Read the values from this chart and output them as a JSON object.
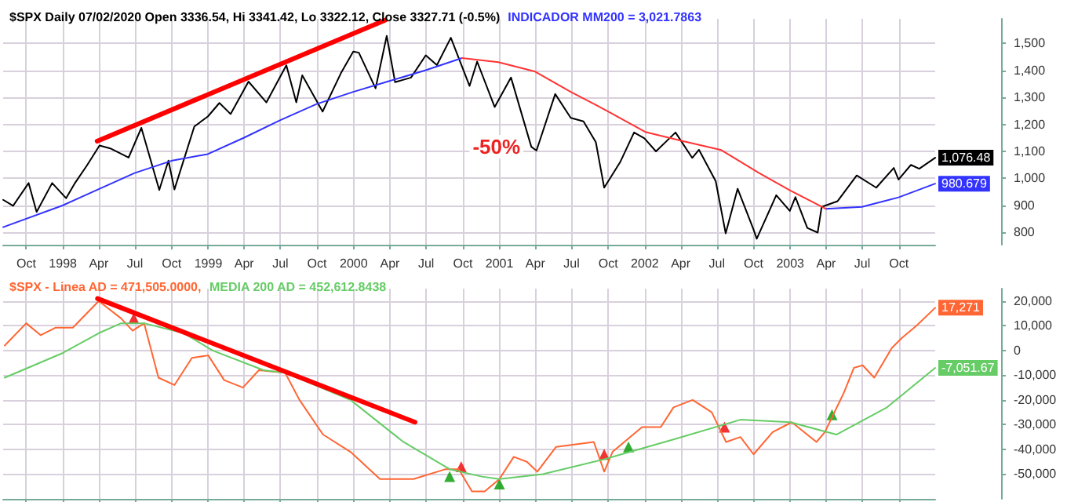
{
  "chart_data": [
    {
      "type": "line",
      "title": "$SPX Daily 07/02/2020 Open 3336.54, Hi 3341.42, Lo 3322.12, Close 3327.71 (-0.5%)",
      "subtitle": "INDICADOR MM200 = 3,021.7863",
      "annotations": [
        "-50%"
      ],
      "xlim": [
        "1997-08-04",
        "2003-12-31"
      ],
      "xticks": [
        {
          "value": "1997-10-01",
          "label": "Oct"
        },
        {
          "value": "1998-01-01",
          "label": "1998"
        },
        {
          "value": "1998-04-01",
          "label": "Apr"
        },
        {
          "value": "1998-07-01",
          "label": "Jul"
        },
        {
          "value": "1998-10-01",
          "label": "Oct"
        },
        {
          "value": "1999-01-01",
          "label": "1999"
        },
        {
          "value": "1999-04-01",
          "label": "Apr"
        },
        {
          "value": "1999-07-01",
          "label": "Jul"
        },
        {
          "value": "1999-10-01",
          "label": "Oct"
        },
        {
          "value": "2000-01-01",
          "label": "2000"
        },
        {
          "value": "2000-04-01",
          "label": "Apr"
        },
        {
          "value": "2000-07-01",
          "label": "Jul"
        },
        {
          "value": "2000-10-01",
          "label": "Oct"
        },
        {
          "value": "2001-01-01",
          "label": "2001"
        },
        {
          "value": "2001-04-01",
          "label": "Apr"
        },
        {
          "value": "2001-07-01",
          "label": "Jul"
        },
        {
          "value": "2001-10-01",
          "label": "Oct"
        },
        {
          "value": "2002-01-01",
          "label": "2002"
        },
        {
          "value": "2002-04-01",
          "label": "Apr"
        },
        {
          "value": "2002-07-01",
          "label": "Jul"
        },
        {
          "value": "2002-10-01",
          "label": "Oct"
        },
        {
          "value": "2003-01-01",
          "label": "2003"
        },
        {
          "value": "2003-04-01",
          "label": "Apr"
        },
        {
          "value": "2003-07-01",
          "label": "Jul"
        },
        {
          "value": "2003-10-01",
          "label": "Oct"
        }
      ],
      "ylim": [
        755,
        1590
      ],
      "yticks": [
        {
          "value": 800,
          "label": "800"
        },
        {
          "value": 900,
          "label": "900"
        },
        {
          "value": 1000,
          "label": "1,000"
        },
        {
          "value": 1100,
          "label": "1,100"
        },
        {
          "value": 1200,
          "label": "1,200"
        },
        {
          "value": 1300,
          "label": "1,300"
        },
        {
          "value": 1400,
          "label": "1,400"
        },
        {
          "value": 1500,
          "label": "1,500"
        }
      ],
      "grid": true,
      "series": [
        {
          "color": "#000000",
          "x": [
            "1997-08-04",
            "1997-08-29",
            "1997-10-07",
            "1997-10-27",
            "1997-12-05",
            "1998-01-09",
            "1998-01-30",
            "1998-03-02",
            "1998-04-03",
            "1998-04-30",
            "1998-06-15",
            "1998-07-17",
            "1998-08-31",
            "1998-09-23",
            "1998-10-08",
            "1998-11-27",
            "1998-12-31",
            "1999-01-29",
            "1999-02-26",
            "1999-04-12",
            "1999-05-27",
            "1999-07-16",
            "1999-08-10",
            "1999-08-25",
            "1999-10-15",
            "1999-11-30",
            "1999-12-31",
            "2000-01-14",
            "2000-02-25",
            "2000-03-24",
            "2000-04-14",
            "2000-05-24",
            "2000-06-30",
            "2000-07-28",
            "2000-09-01",
            "2000-10-18",
            "2000-11-06",
            "2000-12-20",
            "2001-01-30",
            "2001-03-22",
            "2001-04-04",
            "2001-05-21",
            "2001-06-29",
            "2001-07-31",
            "2001-08-31",
            "2001-09-21",
            "2001-10-31",
            "2001-12-05",
            "2001-12-31",
            "2002-01-29",
            "2002-03-19",
            "2002-04-30",
            "2002-05-17",
            "2002-06-28",
            "2002-07-23",
            "2002-08-22",
            "2002-09-30",
            "2002-10-09",
            "2002-11-27",
            "2002-12-31",
            "2003-01-14",
            "2003-02-13",
            "2003-03-11",
            "2003-03-21",
            "2003-04-30",
            "2003-06-17",
            "2003-08-05",
            "2003-09-18",
            "2003-09-30",
            "2003-10-31",
            "2003-11-21",
            "2003-12-31"
          ],
          "values": [
            921,
            899,
            983,
            876,
            983,
            927,
            980,
            1047,
            1122,
            1111,
            1077,
            1187,
            957,
            1066,
            959,
            1192,
            1229,
            1279,
            1238,
            1358,
            1281,
            1418,
            1281,
            1381,
            1247,
            1389,
            1469,
            1465,
            1333,
            1527,
            1356,
            1373,
            1455,
            1419,
            1520,
            1342,
            1432,
            1264,
            1373,
            1117,
            1103,
            1312,
            1224,
            1211,
            1134,
            966,
            1060,
            1170,
            1148,
            1100,
            1170,
            1076,
            1106,
            990,
            797,
            962,
            815,
            777,
            938,
            880,
            931,
            817,
            800,
            895,
            916,
            1011,
            966,
            1039,
            996,
            1050,
            1036,
            1076.48
          ],
          "value_labels": [
            null,
            null,
            null,
            null,
            null,
            null,
            null,
            null,
            null,
            null,
            null,
            null,
            null,
            null,
            null,
            null,
            null,
            null,
            null,
            null,
            null,
            null,
            null,
            null,
            null,
            null,
            null,
            null,
            null,
            null,
            null,
            null,
            null,
            null,
            null,
            null,
            null,
            null,
            null,
            null,
            null,
            null,
            null,
            null,
            null,
            null,
            null,
            null,
            null,
            null,
            null,
            null,
            null,
            null,
            null,
            null,
            null,
            null,
            null,
            null,
            null,
            null,
            null,
            null,
            null,
            null,
            null,
            null,
            null,
            null,
            null,
            "1,076.48"
          ]
        },
        {
          "color": "#3333ff",
          "x": [
            "1997-08-04",
            "1997-12-31",
            "1998-03-31",
            "1998-06-30",
            "1998-09-30",
            "1998-12-31",
            "1999-03-31",
            "1999-06-30",
            "1999-09-30",
            "1999-12-31",
            "2000-03-31",
            "2000-06-30",
            "2000-09-29",
            "2000-10-15",
            "2003-03-31",
            "2003-06-30",
            "2003-09-30",
            "2003-12-31"
          ],
          "values": [
            820,
            900,
            960,
            1020,
            1065,
            1090,
            1150,
            1215,
            1275,
            1320,
            1360,
            1400,
            1445,
            null,
            888,
            895,
            930,
            980.679
          ],
          "value_labels": [
            null,
            null,
            null,
            null,
            null,
            null,
            null,
            null,
            null,
            null,
            null,
            null,
            null,
            null,
            null,
            null,
            null,
            "980.679"
          ]
        },
        {
          "color": "#ff3333",
          "x": [
            "2000-09-29",
            "2000-12-29",
            "2001-03-30",
            "2001-06-29",
            "2001-09-28",
            "2002-01-02",
            "2002-04-01",
            "2002-07-12",
            "2002-10-15",
            "2003-01-02",
            "2003-03-31"
          ],
          "values": [
            1445,
            1430,
            1396,
            1320,
            1250,
            1172,
            1140,
            1105,
            1020,
            955,
            888
          ]
        },
        {
          "color": "#ff0000",
          "x": [
            "1998-03-28",
            "2000-03-20"
          ],
          "values": [
            1138,
            1585
          ]
        }
      ]
    },
    {
      "type": "line",
      "title": "$SPX - Linea AD = 471,505.0000,",
      "subtitle": "MEDIA 200 AD = 452,612.8438",
      "tick_labels": "y",
      "xlim": [
        "1997-08-04",
        "2003-12-31"
      ],
      "xticks": [
        {
          "value": "1997-10-01",
          "label": null
        },
        {
          "value": "1998-01-01",
          "label": null
        },
        {
          "value": "1998-04-01",
          "label": null
        },
        {
          "value": "1998-07-01",
          "label": null
        },
        {
          "value": "1998-10-01",
          "label": null
        },
        {
          "value": "1999-01-01",
          "label": null
        },
        {
          "value": "1999-04-01",
          "label": null
        },
        {
          "value": "1999-07-01",
          "label": null
        },
        {
          "value": "1999-10-01",
          "label": null
        },
        {
          "value": "2000-01-01",
          "label": null
        },
        {
          "value": "2000-04-01",
          "label": null
        },
        {
          "value": "2000-07-01",
          "label": null
        },
        {
          "value": "2000-10-01",
          "label": null
        },
        {
          "value": "2001-01-01",
          "label": null
        },
        {
          "value": "2001-04-01",
          "label": null
        },
        {
          "value": "2001-07-01",
          "label": null
        },
        {
          "value": "2001-10-01",
          "label": null
        },
        {
          "value": "2002-01-01",
          "label": null
        },
        {
          "value": "2002-04-01",
          "label": null
        },
        {
          "value": "2002-07-01",
          "label": null
        },
        {
          "value": "2002-10-01",
          "label": null
        },
        {
          "value": "2003-01-01",
          "label": null
        },
        {
          "value": "2003-04-01",
          "label": null
        },
        {
          "value": "2003-07-01",
          "label": null
        },
        {
          "value": "2003-10-01",
          "label": null
        }
      ],
      "ylim": [
        -60000,
        25000
      ],
      "yticks": [
        {
          "value": -50000,
          "label": "-50,000"
        },
        {
          "value": -40000,
          "label": "-40,000"
        },
        {
          "value": -30000,
          "label": "-30,000"
        },
        {
          "value": -20000,
          "label": "-20,000"
        },
        {
          "value": -10000,
          "label": "-10,000"
        },
        0,
        {
          "value": 10000,
          "label": "10,000"
        },
        {
          "value": 20000,
          "label": "20,000"
        }
      ],
      "grid": true,
      "series": [
        {
          "color": "#ff6633",
          "x": [
            "1997-08-08",
            "1997-10-01",
            "1997-11-06",
            "1997-12-13",
            "1998-01-26",
            "1998-04-01",
            "1998-05-27",
            "1998-06-25",
            "1998-07-24",
            "1998-08-29",
            "1998-10-08",
            "1998-11-21",
            "1999-01-01",
            "1999-02-10",
            "1999-03-29",
            "1999-05-08",
            "1999-07-13",
            "1999-08-18",
            "1999-10-16",
            "1999-12-24",
            "2000-03-07",
            "2000-05-30",
            "2000-08-19",
            "2000-09-21",
            "2000-10-24",
            "2000-11-25",
            "2001-01-01",
            "2001-02-06",
            "2001-03-11",
            "2001-04-06",
            "2001-05-23",
            "2001-08-26",
            "2001-09-21",
            "2001-10-12",
            "2001-12-25",
            "2002-02-10",
            "2002-03-14",
            "2002-05-01",
            "2002-06-18",
            "2002-07-24",
            "2002-08-29",
            "2002-10-01",
            "2002-11-18",
            "2003-01-05",
            "2003-03-08",
            "2003-03-29",
            "2003-05-16",
            "2003-06-10",
            "2003-07-02",
            "2003-07-31",
            "2003-09-13",
            "2003-10-08",
            "2003-11-14",
            "2003-12-31"
          ],
          "values": [
            2000,
            11000,
            6200,
            9200,
            9200,
            20000,
            13000,
            8000,
            11000,
            -11000,
            -14000,
            -3000,
            -2000,
            -12000,
            -15000,
            -8000,
            -9000,
            -20000,
            -34000,
            -41000,
            -52000,
            -52000,
            -48000,
            -48000,
            -57000,
            -57000,
            -52000,
            -43000,
            -45000,
            -49000,
            -39000,
            -37000,
            -49000,
            -41000,
            -31000,
            -31000,
            -23000,
            -20000,
            -25000,
            -37000,
            -35000,
            -42000,
            -33000,
            -29000,
            -37000,
            -33000,
            -17000,
            -7000,
            -6000,
            -11000,
            1000,
            5000,
            10000,
            17271
          ],
          "value_labels": [
            null,
            null,
            null,
            null,
            null,
            null,
            null,
            null,
            null,
            null,
            null,
            null,
            null,
            null,
            null,
            null,
            null,
            null,
            null,
            null,
            null,
            null,
            null,
            null,
            null,
            null,
            null,
            null,
            null,
            null,
            null,
            null,
            null,
            null,
            null,
            null,
            null,
            null,
            null,
            null,
            null,
            null,
            null,
            null,
            null,
            null,
            null,
            null,
            null,
            null,
            null,
            null,
            null,
            "17,271"
          ]
        },
        {
          "color": "#66cc66",
          "x": [
            "1997-08-08",
            "1998-01-01",
            "1998-04-01",
            "1998-05-27",
            "1998-07-24",
            "1998-10-31",
            "1999-01-12",
            "1999-05-20",
            "1999-07-13",
            "1999-12-24",
            "2000-05-05",
            "2000-08-29",
            "2000-11-18",
            "2001-01-01",
            "2001-04-20",
            "2001-09-21",
            "2002-03-14",
            "2002-08-29",
            "2003-01-01",
            "2003-04-27",
            "2003-09-01",
            "2003-12-31"
          ],
          "values": [
            -11000,
            -1000,
            7000,
            11000,
            11000,
            7000,
            0,
            -8000,
            -9000,
            -20000,
            -37000,
            -48000,
            -51000,
            -52000,
            -50000,
            -44000,
            -36000,
            -28000,
            -29000,
            -34000,
            -23000,
            -7051.67
          ],
          "value_labels": [
            null,
            null,
            null,
            null,
            null,
            null,
            null,
            null,
            null,
            null,
            null,
            null,
            null,
            null,
            null,
            null,
            null,
            null,
            null,
            null,
            null,
            "-7,051.67"
          ]
        },
        {
          "color": "#ff0000",
          "x": [
            "1998-03-29",
            "2000-06-03"
          ],
          "values": [
            21000,
            -29000
          ]
        },
        {
          "type": "scatter",
          "marker": "triangle",
          "color": "#009900",
          "x": [
            "2000-08-29",
            "2001-01-01",
            "2001-11-21",
            "2003-04-16"
          ],
          "values": [
            -51000,
            -54000,
            -39000,
            -26000
          ]
        },
        {
          "type": "scatter",
          "marker": "triangle",
          "color": "#ee0000",
          "x": [
            "1998-06-28",
            "2000-09-27",
            "2001-09-21",
            "2002-07-20"
          ],
          "values": [
            13000,
            -47000,
            -42000,
            -31000
          ]
        }
      ]
    }
  ]
}
